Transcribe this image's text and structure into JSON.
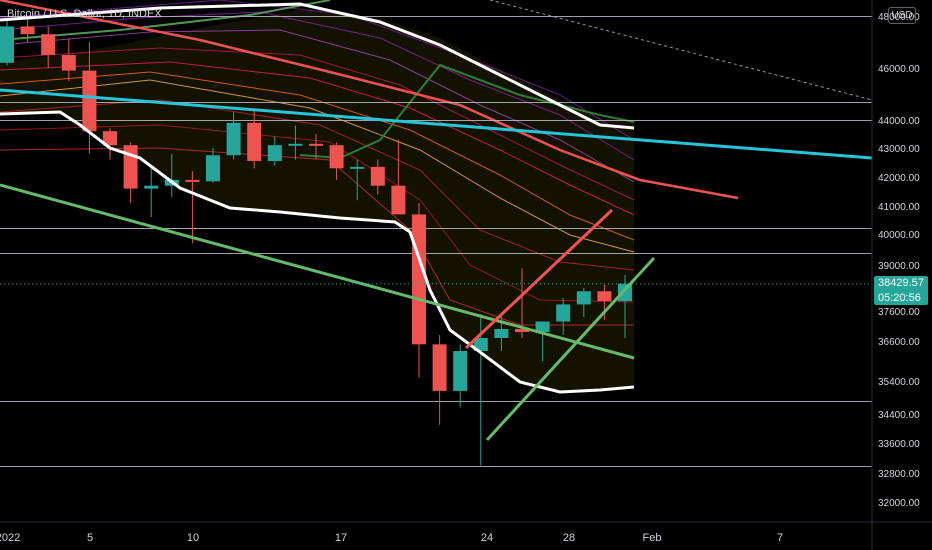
{
  "header": {
    "title": "Bitcoin / U.S. Dollar, 1D, INDEX",
    "currency_button": "USD"
  },
  "price_tag": {
    "price": "38429.57",
    "countdown": "05:20:56"
  },
  "colors": {
    "up": "#26a69a",
    "down": "#ef5350",
    "axis_text": "#d1d4dc",
    "grid": "#363a45"
  },
  "chart_data": {
    "type": "candlestick",
    "title": "Bitcoin / U.S. Dollar, 1D, INDEX",
    "x_tick_labels": [
      "2022",
      "5",
      "10",
      "17",
      "24",
      "28",
      "Feb",
      "7"
    ],
    "y_tick_labels": [
      "48000.00",
      "46000.00",
      "44000.00",
      "43000.00",
      "42000.00",
      "41000.00",
      "40000.00",
      "39000.00",
      "37600.00",
      "36600.00",
      "35400.00",
      "34400.00",
      "33600.00",
      "32800.00",
      "32000.00"
    ],
    "y_range": [
      31200,
      48800
    ],
    "last_price": 38429.57,
    "candles": [
      {
        "date": "2022-01-01",
        "open": 46200,
        "high": 47900,
        "low": 46100,
        "close": 47600
      },
      {
        "date": "2022-01-02",
        "open": 47600,
        "high": 47900,
        "low": 47000,
        "close": 47300
      },
      {
        "date": "2022-01-03",
        "open": 47300,
        "high": 47600,
        "low": 46000,
        "close": 46500
      },
      {
        "date": "2022-01-04",
        "open": 46500,
        "high": 47100,
        "low": 45500,
        "close": 45900
      },
      {
        "date": "2022-01-05",
        "open": 45900,
        "high": 47000,
        "low": 42800,
        "close": 43600
      },
      {
        "date": "2022-01-06",
        "open": 43600,
        "high": 43700,
        "low": 42600,
        "close": 43100
      },
      {
        "date": "2022-01-07",
        "open": 43100,
        "high": 43200,
        "low": 41100,
        "close": 41600
      },
      {
        "date": "2022-01-08",
        "open": 41600,
        "high": 42300,
        "low": 40600,
        "close": 41700
      },
      {
        "date": "2022-01-09",
        "open": 41700,
        "high": 42800,
        "low": 41300,
        "close": 41900
      },
      {
        "date": "2022-01-10",
        "open": 41900,
        "high": 42200,
        "low": 39700,
        "close": 41850
      },
      {
        "date": "2022-01-11",
        "open": 41850,
        "high": 43000,
        "low": 41800,
        "close": 42750
      },
      {
        "date": "2022-01-12",
        "open": 42750,
        "high": 44300,
        "low": 42600,
        "close": 43900
      },
      {
        "date": "2022-01-13",
        "open": 43900,
        "high": 44400,
        "low": 42300,
        "close": 42550
      },
      {
        "date": "2022-01-14",
        "open": 42550,
        "high": 43400,
        "low": 42400,
        "close": 43100
      },
      {
        "date": "2022-01-15",
        "open": 43100,
        "high": 43800,
        "low": 42600,
        "close": 43150
      },
      {
        "date": "2022-01-16",
        "open": 43150,
        "high": 43500,
        "low": 42600,
        "close": 43100
      },
      {
        "date": "2022-01-17",
        "open": 43100,
        "high": 43200,
        "low": 41900,
        "close": 42300
      },
      {
        "date": "2022-01-18",
        "open": 42300,
        "high": 42600,
        "low": 41200,
        "close": 42350
      },
      {
        "date": "2022-01-19",
        "open": 42350,
        "high": 42600,
        "low": 41400,
        "close": 41700
      },
      {
        "date": "2022-01-20",
        "open": 41700,
        "high": 43300,
        "low": 40800,
        "close": 40700
      },
      {
        "date": "2022-01-21",
        "open": 40700,
        "high": 41100,
        "low": 35500,
        "close": 36500
      },
      {
        "date": "2022-01-22",
        "open": 36500,
        "high": 36800,
        "low": 34100,
        "close": 35100
      },
      {
        "date": "2022-01-23",
        "open": 35100,
        "high": 36500,
        "low": 34600,
        "close": 36300
      },
      {
        "date": "2022-01-24",
        "open": 36300,
        "high": 37500,
        "low": 33000,
        "close": 36700
      },
      {
        "date": "2022-01-25",
        "open": 36700,
        "high": 37500,
        "low": 36300,
        "close": 37000
      },
      {
        "date": "2022-01-26",
        "open": 37000,
        "high": 38900,
        "low": 36700,
        "close": 36900
      },
      {
        "date": "2022-01-27",
        "open": 36900,
        "high": 37200,
        "low": 36000,
        "close": 37250
      },
      {
        "date": "2022-01-28",
        "open": 37250,
        "high": 38000,
        "low": 36800,
        "close": 37800
      },
      {
        "date": "2022-01-29",
        "open": 37800,
        "high": 38300,
        "low": 37400,
        "close": 38200
      },
      {
        "date": "2022-01-30",
        "open": 38200,
        "high": 38400,
        "low": 37300,
        "close": 37900
      },
      {
        "date": "2022-01-31",
        "open": 37900,
        "high": 38700,
        "low": 36700,
        "close": 38430
      }
    ],
    "horizontal_levels": [
      48000,
      44700,
      44000,
      40200,
      39400,
      34800,
      33000
    ],
    "grid": false,
    "legend": "none"
  }
}
